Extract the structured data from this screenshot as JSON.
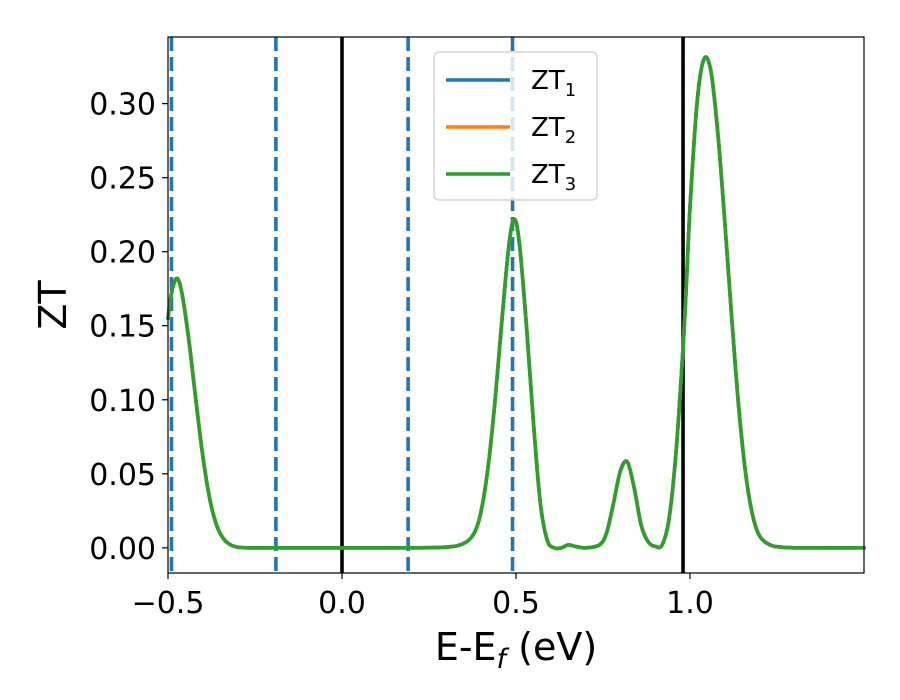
{
  "chart_data": {
    "type": "line",
    "title": "",
    "xlabel": {
      "base": "E-E",
      "sub": "f",
      "suffix": " (eV)"
    },
    "ylabel": "ZT",
    "xlim": [
      -0.5,
      1.5
    ],
    "ylim": [
      -0.017,
      0.345
    ],
    "xticks": [
      {
        "value": -0.5,
        "label": "−0.5"
      },
      {
        "value": 0.0,
        "label": "0.0"
      },
      {
        "value": 0.5,
        "label": "0.5"
      },
      {
        "value": 1.0,
        "label": "1.0"
      }
    ],
    "yticks": [
      {
        "value": 0.0,
        "label": "0.00"
      },
      {
        "value": 0.05,
        "label": "0.05"
      },
      {
        "value": 0.1,
        "label": "0.10"
      },
      {
        "value": 0.15,
        "label": "0.15"
      },
      {
        "value": 0.2,
        "label": "0.20"
      },
      {
        "value": 0.25,
        "label": "0.25"
      },
      {
        "value": 0.3,
        "label": "0.30"
      }
    ],
    "grid": false,
    "legend": {
      "placement": "top-center"
    },
    "x": [
      -0.5,
      -0.49,
      -0.475,
      -0.46,
      -0.44,
      -0.42,
      -0.4,
      -0.38,
      -0.36,
      -0.34,
      -0.32,
      -0.3,
      -0.27,
      -0.24,
      -0.2,
      -0.1,
      0.0,
      0.1,
      0.2,
      0.3,
      0.35,
      0.38,
      0.4,
      0.42,
      0.44,
      0.46,
      0.48,
      0.495,
      0.51,
      0.53,
      0.55,
      0.57,
      0.59,
      0.61,
      0.63,
      0.65,
      0.67,
      0.7,
      0.74,
      0.76,
      0.78,
      0.8,
      0.82,
      0.84,
      0.86,
      0.88,
      0.9,
      0.92,
      0.94,
      0.96,
      0.98,
      0.99,
      1.0,
      1.02,
      1.04,
      1.06,
      1.08,
      1.1,
      1.12,
      1.14,
      1.16,
      1.18,
      1.2,
      1.23,
      1.26,
      1.3,
      1.4,
      1.5
    ],
    "series": [
      {
        "name": "ZT",
        "sub": "1",
        "color": "#1f77b4",
        "values": [
          0.155,
          0.172,
          0.182,
          0.172,
          0.14,
          0.1,
          0.062,
          0.033,
          0.015,
          0.006,
          0.002,
          0.0005,
          0.0,
          0.0,
          0.0,
          0.0,
          0.0,
          0.0,
          0.0,
          0.0005,
          0.003,
          0.01,
          0.025,
          0.055,
          0.1,
          0.155,
          0.205,
          0.222,
          0.205,
          0.15,
          0.085,
          0.03,
          0.005,
          0.0,
          0.0,
          0.002,
          0.001,
          0.0,
          0.002,
          0.01,
          0.03,
          0.052,
          0.058,
          0.04,
          0.015,
          0.004,
          0.001,
          0.002,
          0.02,
          0.065,
          0.135,
          0.18,
          0.23,
          0.3,
          0.33,
          0.322,
          0.28,
          0.22,
          0.155,
          0.095,
          0.05,
          0.022,
          0.008,
          0.002,
          0.0005,
          0.0,
          0.0,
          0.0
        ]
      },
      {
        "name": "ZT",
        "sub": "2",
        "color": "#ff7f0e",
        "values": [
          0.155,
          0.172,
          0.182,
          0.172,
          0.14,
          0.1,
          0.062,
          0.033,
          0.015,
          0.006,
          0.002,
          0.0005,
          0.0,
          0.0,
          0.0,
          0.0,
          0.0,
          0.0,
          0.0,
          0.0005,
          0.003,
          0.01,
          0.025,
          0.055,
          0.1,
          0.155,
          0.205,
          0.222,
          0.205,
          0.15,
          0.085,
          0.03,
          0.005,
          0.0,
          0.0,
          0.002,
          0.001,
          0.0,
          0.002,
          0.01,
          0.03,
          0.052,
          0.058,
          0.04,
          0.015,
          0.004,
          0.001,
          0.002,
          0.02,
          0.065,
          0.135,
          0.18,
          0.23,
          0.3,
          0.33,
          0.322,
          0.28,
          0.22,
          0.155,
          0.095,
          0.05,
          0.022,
          0.008,
          0.002,
          0.0005,
          0.0,
          0.0,
          0.0
        ]
      },
      {
        "name": "ZT",
        "sub": "3",
        "color": "#2ca02c",
        "values": [
          0.155,
          0.172,
          0.182,
          0.172,
          0.14,
          0.1,
          0.062,
          0.033,
          0.015,
          0.006,
          0.002,
          0.0005,
          0.0,
          0.0,
          0.0,
          0.0,
          0.0,
          0.0,
          0.0,
          0.0005,
          0.003,
          0.01,
          0.025,
          0.055,
          0.1,
          0.155,
          0.205,
          0.222,
          0.205,
          0.15,
          0.085,
          0.03,
          0.005,
          0.0,
          0.0,
          0.002,
          0.001,
          0.0,
          0.002,
          0.01,
          0.03,
          0.052,
          0.058,
          0.04,
          0.015,
          0.004,
          0.001,
          0.002,
          0.02,
          0.065,
          0.135,
          0.18,
          0.23,
          0.3,
          0.33,
          0.322,
          0.28,
          0.22,
          0.155,
          0.095,
          0.05,
          0.022,
          0.008,
          0.002,
          0.0005,
          0.0,
          0.0,
          0.0
        ]
      }
    ],
    "vlines": [
      {
        "x": -0.49,
        "style": "dashed",
        "color": "#1f77b4"
      },
      {
        "x": -0.19,
        "style": "dashed",
        "color": "#1f77b4"
      },
      {
        "x": 0.19,
        "style": "dashed",
        "color": "#1f77b4"
      },
      {
        "x": 0.49,
        "style": "dashed",
        "color": "#1f77b4"
      },
      {
        "x": 0.0,
        "style": "solid",
        "color": "#000000"
      },
      {
        "x": 0.98,
        "style": "solid",
        "color": "#000000"
      }
    ]
  }
}
